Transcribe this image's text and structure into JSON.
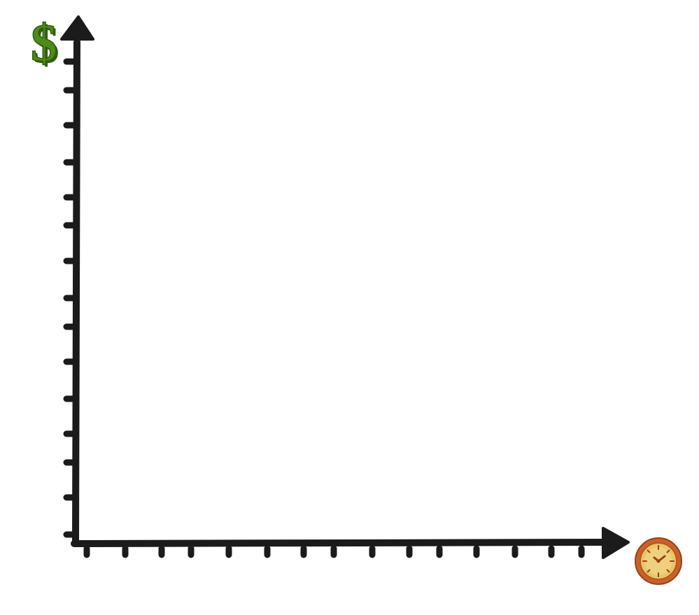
{
  "icons": {
    "y_axis": {
      "name": "dollar-sign-icon",
      "glyph": "$",
      "color": "#4e8a1c",
      "shade": "#2f5e0e"
    },
    "x_axis": {
      "name": "clock-icon",
      "color": "#c8622a",
      "face": "#e9c56a",
      "hand": "#9a3f14"
    }
  },
  "axes": {
    "color": "#1b1b1c",
    "y_tick_count": 14,
    "x_tick_count": 15
  }
}
